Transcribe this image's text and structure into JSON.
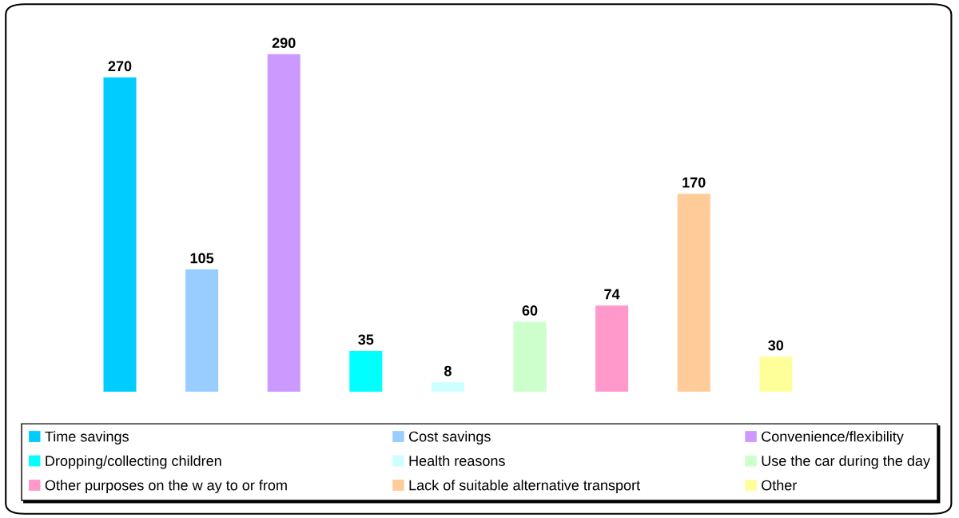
{
  "chart_data": {
    "type": "bar",
    "stacked": true,
    "categories": [
      null,
      null,
      null,
      null,
      null,
      null,
      null,
      null,
      null
    ],
    "series": [
      {
        "name": "Time savings",
        "color": "#00ccff",
        "values": [
          270,
          null,
          null,
          null,
          null,
          null,
          null,
          null,
          null
        ]
      },
      {
        "name": "Cost savings",
        "color": "#99ccff",
        "values": [
          null,
          105,
          null,
          null,
          null,
          null,
          null,
          null,
          null
        ]
      },
      {
        "name": "Convenience/flexibility",
        "color": "#cc99ff",
        "values": [
          null,
          null,
          290,
          null,
          null,
          null,
          null,
          null,
          null
        ]
      },
      {
        "name": "Dropping/collecting children",
        "color": "#00ffff",
        "values": [
          null,
          null,
          null,
          35,
          null,
          null,
          null,
          null,
          null
        ]
      },
      {
        "name": "Health reasons",
        "color": "#ccffff",
        "values": [
          null,
          null,
          null,
          null,
          8,
          null,
          null,
          null,
          null
        ]
      },
      {
        "name": "Use the car during the day",
        "color": "#ccffcc",
        "values": [
          null,
          null,
          null,
          null,
          null,
          60,
          null,
          null,
          null
        ]
      },
      {
        "name": "Other purposes on the w ay to or from",
        "color": "#ff99cc",
        "values": [
          null,
          null,
          null,
          null,
          null,
          null,
          74,
          null,
          null
        ]
      },
      {
        "name": "Lack of suitable alternative transport",
        "color": "#ffcc99",
        "values": [
          null,
          null,
          null,
          null,
          null,
          null,
          null,
          170,
          null
        ]
      },
      {
        "name": "Other",
        "color": "#ffff99",
        "values": [
          null,
          null,
          null,
          null,
          null,
          null,
          null,
          null,
          30
        ]
      }
    ],
    "data_labels": true,
    "legend": "bottom",
    "grid": false,
    "tick_labels": false
  }
}
